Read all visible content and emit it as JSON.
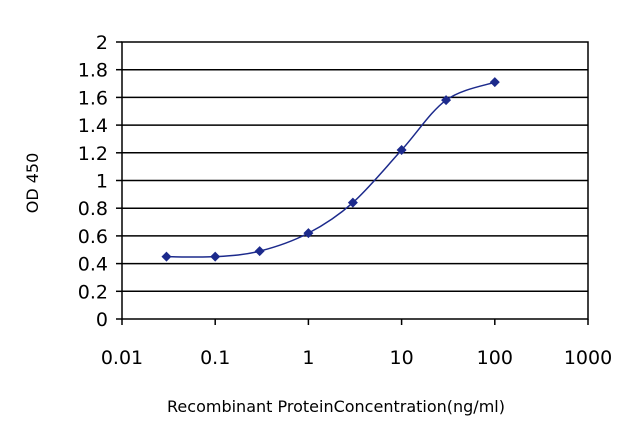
{
  "chart_data": {
    "type": "scatter",
    "xscale": "log",
    "ylabel": "OD 450",
    "xlabel": "Recombinant ProteinConcentration(ng/ml)",
    "xlim": [
      0.01,
      1000
    ],
    "ylim": [
      0,
      2
    ],
    "xticks": [
      "0.01",
      "0.1",
      "1",
      "10",
      "100",
      "1000"
    ],
    "yticks": [
      "0",
      "0.2",
      "0.4",
      "0.6",
      "0.8",
      "1",
      "1.2",
      "1.4",
      "1.6",
      "1.8",
      "2"
    ],
    "grid": "horizontal",
    "series": [
      {
        "x": [
          0.03,
          0.1,
          0.3,
          1,
          3,
          10,
          30,
          100
        ],
        "y": [
          0.45,
          0.45,
          0.49,
          0.62,
          0.84,
          1.22,
          1.58,
          1.71
        ]
      }
    ],
    "colors": {
      "series": "#1c2a8c",
      "grid": "#000000",
      "background": "#ffffff"
    }
  }
}
